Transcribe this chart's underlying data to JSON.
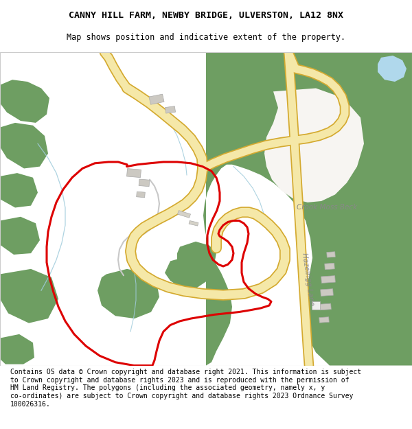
{
  "title_line1": "CANNY HILL FARM, NEWBY BRIDGE, ULVERSTON, LA12 8NX",
  "title_line2": "Map shows position and indicative extent of the property.",
  "footer_text": "Contains OS data © Crown copyright and database right 2021. This information is subject\nto Crown copyright and database rights 2023 and is reproduced with the permission of\nHM Land Registry. The polygons (including the associated geometry, namely x, y\nco-ordinates) are subject to Crown copyright and database rights 2023 Ordnance Survey\n100026316.",
  "map_bg": "#f7f5f2",
  "green": "#6e9e62",
  "road_fill": "#f5e8a8",
  "road_border": "#d4aa30",
  "red": "#dd0000",
  "building": "#ccc9c2",
  "water_line": "#a0ccdc",
  "water_fill": "#b0d8ec",
  "grey_path": "#c8c8c8",
  "title_fontsize": 9.5,
  "subtitle_fontsize": 8.5,
  "footer_fontsize": 7.0,
  "label_color": "#888888"
}
